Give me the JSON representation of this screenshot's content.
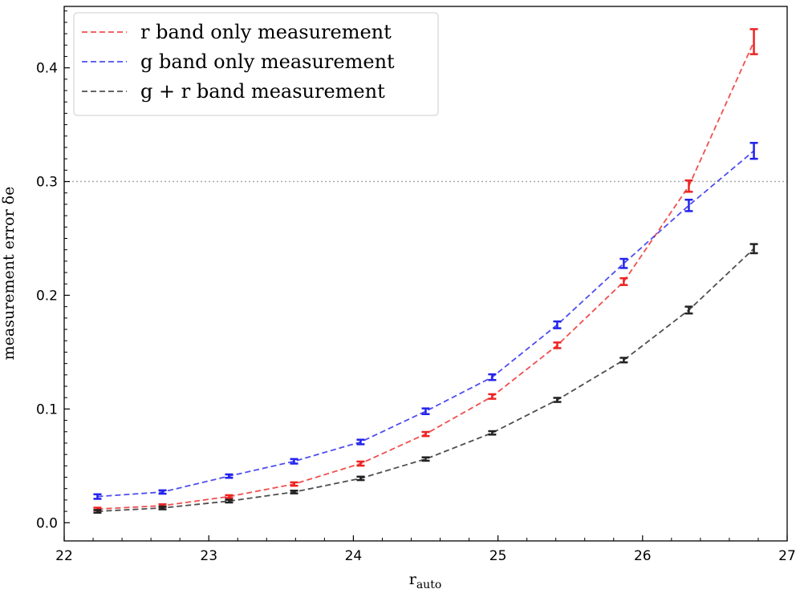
{
  "chart_data": {
    "type": "line",
    "xlabel": "r",
    "xlabel_sub": "auto",
    "ylabel": "measurement error δe",
    "xlim": [
      22,
      27
    ],
    "ylim": [
      -0.016,
      0.454
    ],
    "xticks": [
      22,
      23,
      24,
      25,
      26,
      27
    ],
    "yticks": [
      0.0,
      0.1,
      0.2,
      0.3,
      0.4
    ],
    "xtick_labels": [
      "22",
      "23",
      "24",
      "25",
      "26",
      "27"
    ],
    "ytick_labels": [
      "0.0",
      "0.1",
      "0.2",
      "0.3",
      "0.4"
    ],
    "reference_line": {
      "y": 0.3,
      "style": "dotted",
      "color": "#aaaaaa"
    },
    "legend_position": "top-left",
    "x": [
      22.23,
      22.68,
      23.14,
      23.59,
      24.05,
      24.5,
      24.96,
      25.41,
      25.87,
      26.32,
      26.77
    ],
    "series": [
      {
        "name": "r band only measurement",
        "color": "#ee2222",
        "values": [
          0.012,
          0.015,
          0.023,
          0.034,
          0.052,
          0.078,
          0.111,
          0.156,
          0.212,
          0.296,
          0.423
        ],
        "errors": [
          0.0012,
          0.0012,
          0.0012,
          0.0015,
          0.0018,
          0.0018,
          0.002,
          0.0025,
          0.003,
          0.005,
          0.011
        ]
      },
      {
        "name": "g band only measurement",
        "color": "#2222ee",
        "values": [
          0.023,
          0.027,
          0.041,
          0.054,
          0.071,
          0.098,
          0.128,
          0.174,
          0.228,
          0.279,
          0.327
        ],
        "errors": [
          0.002,
          0.0015,
          0.0015,
          0.002,
          0.002,
          0.0025,
          0.0025,
          0.003,
          0.004,
          0.005,
          0.007
        ]
      },
      {
        "name": "g + r band measurement",
        "color": "#222222",
        "values": [
          0.01,
          0.013,
          0.019,
          0.027,
          0.039,
          0.056,
          0.079,
          0.108,
          0.143,
          0.187,
          0.241
        ],
        "errors": [
          0.0012,
          0.0012,
          0.0012,
          0.0012,
          0.0015,
          0.0015,
          0.0015,
          0.0018,
          0.002,
          0.003,
          0.004
        ]
      }
    ]
  }
}
